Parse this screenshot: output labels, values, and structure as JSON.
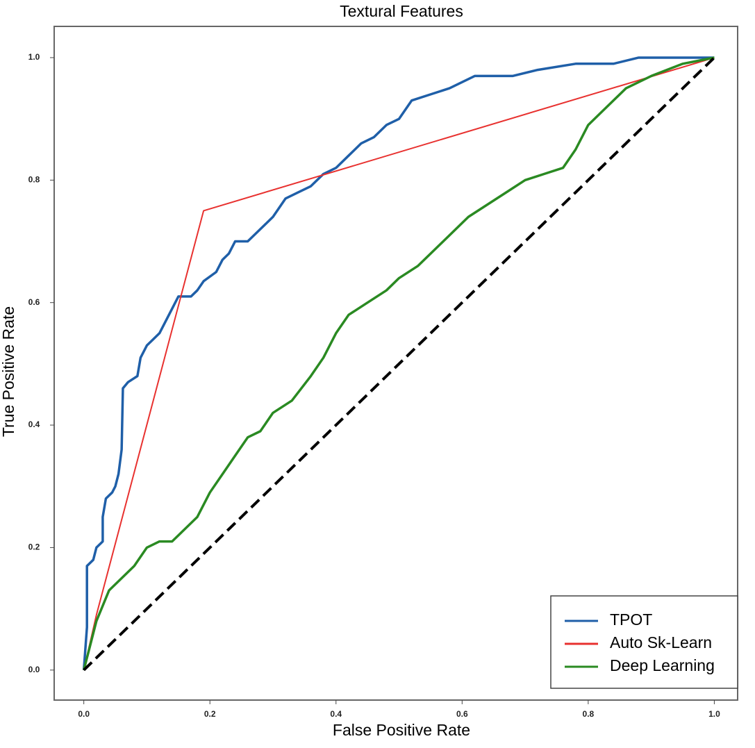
{
  "chart_data": {
    "type": "line",
    "title": "Textural Features",
    "x_label": "False Positive Rate",
    "y_label": "True Positive Rate",
    "xlim": [
      -0.047,
      1.037
    ],
    "ylim": [
      -0.049,
      1.051
    ],
    "xticks": [
      {
        "value": 0,
        "label": "0.0"
      },
      0.2,
      0.4,
      0.6,
      0.8,
      {
        "value": 1,
        "label": "1.0"
      }
    ],
    "yticks": [
      {
        "value": 0,
        "label": "0.0"
      },
      0.2,
      0.4,
      0.6,
      0.8,
      {
        "value": 1,
        "label": "1.0"
      }
    ],
    "legend": "lower right",
    "series": [
      {
        "name": "TPOT",
        "color": "#1f5fa8",
        "x": [
          0,
          0.005,
          0.005,
          0.015,
          0.02,
          0.03,
          0.03,
          0.035,
          0.045,
          0.05,
          0.055,
          0.06,
          0.062,
          0.07,
          0.085,
          0.09,
          0.1,
          0.11,
          0.12,
          0.13,
          0.14,
          0.15,
          0.17,
          0.18,
          0.19,
          0.21,
          0.22,
          0.23,
          0.24,
          0.26,
          0.28,
          0.3,
          0.32,
          0.34,
          0.36,
          0.38,
          0.4,
          0.42,
          0.44,
          0.46,
          0.48,
          0.5,
          0.52,
          0.55,
          0.58,
          0.62,
          0.68,
          0.72,
          0.78,
          0.84,
          0.88,
          1.0
        ],
        "values": [
          0,
          0.07,
          0.17,
          0.18,
          0.2,
          0.21,
          0.25,
          0.28,
          0.29,
          0.3,
          0.32,
          0.36,
          0.46,
          0.47,
          0.48,
          0.51,
          0.53,
          0.54,
          0.55,
          0.57,
          0.59,
          0.61,
          0.61,
          0.62,
          0.635,
          0.65,
          0.67,
          0.68,
          0.7,
          0.7,
          0.72,
          0.74,
          0.77,
          0.78,
          0.79,
          0.81,
          0.82,
          0.84,
          0.86,
          0.87,
          0.89,
          0.9,
          0.93,
          0.94,
          0.95,
          0.97,
          0.97,
          0.98,
          0.99,
          0.99,
          1.0,
          1.0
        ]
      },
      {
        "name": "Auto Sk-Learn",
        "color": "#e8312f",
        "x": [
          0,
          0.02,
          0.19,
          1.0
        ],
        "values": [
          0,
          0.09,
          0.75,
          1.0
        ]
      },
      {
        "name": "Deep Learning",
        "color": "#2a8a22",
        "x": [
          0,
          0.02,
          0.04,
          0.06,
          0.08,
          0.1,
          0.12,
          0.14,
          0.16,
          0.18,
          0.2,
          0.22,
          0.24,
          0.26,
          0.28,
          0.3,
          0.33,
          0.36,
          0.38,
          0.4,
          0.42,
          0.45,
          0.48,
          0.5,
          0.53,
          0.56,
          0.58,
          0.61,
          0.64,
          0.67,
          0.7,
          0.73,
          0.76,
          0.78,
          0.8,
          0.83,
          0.86,
          0.9,
          0.95,
          1.0
        ],
        "values": [
          0,
          0.08,
          0.13,
          0.15,
          0.17,
          0.2,
          0.21,
          0.21,
          0.23,
          0.25,
          0.29,
          0.32,
          0.35,
          0.38,
          0.39,
          0.42,
          0.44,
          0.48,
          0.51,
          0.55,
          0.58,
          0.6,
          0.62,
          0.64,
          0.66,
          0.69,
          0.71,
          0.74,
          0.76,
          0.78,
          0.8,
          0.81,
          0.82,
          0.85,
          0.89,
          0.92,
          0.95,
          0.97,
          0.99,
          1.0
        ]
      }
    ],
    "reference_line": {
      "color": "#000000",
      "x": [
        0,
        1
      ],
      "values": [
        0,
        1
      ]
    }
  }
}
